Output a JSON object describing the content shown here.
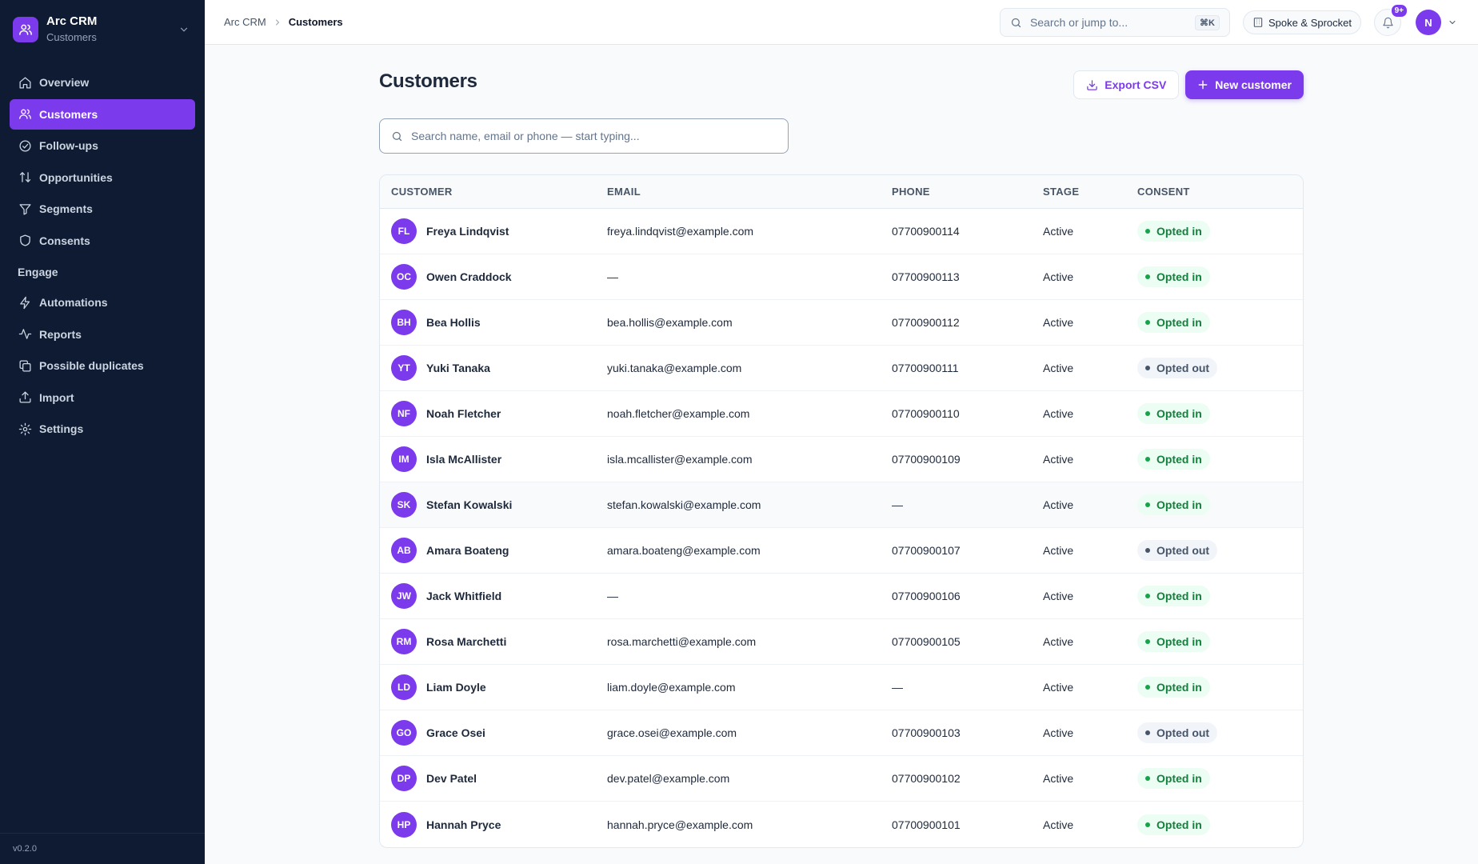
{
  "app": {
    "name": "Arc CRM",
    "section": "Customers",
    "version": "v0.2.0",
    "accent": "#7c3aed"
  },
  "sidebar": {
    "items": [
      {
        "label": "Overview",
        "icon": "home-icon"
      },
      {
        "label": "Customers",
        "icon": "users-icon",
        "active": true
      },
      {
        "label": "Follow-ups",
        "icon": "check-circle-icon"
      },
      {
        "label": "Opportunities",
        "icon": "arrows-updown-icon"
      },
      {
        "label": "Segments",
        "icon": "filter-icon"
      },
      {
        "label": "Consents",
        "icon": "shield-icon"
      }
    ],
    "group_label": "Engage",
    "group_items": [
      {
        "label": "Automations",
        "icon": "bolt-icon"
      },
      {
        "label": "Reports",
        "icon": "activity-icon"
      },
      {
        "label": "Possible duplicates",
        "icon": "copy-icon"
      },
      {
        "label": "Import",
        "icon": "upload-icon"
      },
      {
        "label": "Settings",
        "icon": "gear-icon"
      }
    ]
  },
  "topbar": {
    "breadcrumb_root": "Arc CRM",
    "breadcrumb_current": "Customers",
    "search_placeholder": "Search or jump to...",
    "search_shortcut": "⌘K",
    "org_name": "Spoke & Sprocket",
    "notifications_badge": "9+",
    "user_initial": "N"
  },
  "page": {
    "title": "Customers",
    "export_label": "Export CSV",
    "new_label": "New customer",
    "search_placeholder": "Search name, email or phone — start typing..."
  },
  "table": {
    "headers": {
      "customer": "CUSTOMER",
      "email": "EMAIL",
      "phone": "PHONE",
      "stage": "STAGE",
      "consent": "CONSENT"
    },
    "rows": [
      {
        "initials": "FL",
        "name": "Freya Lindqvist",
        "email": "freya.lindqvist@example.com",
        "phone": "07700900114",
        "stage": "Active",
        "consent": "Opted in"
      },
      {
        "initials": "OC",
        "name": "Owen Craddock",
        "email": "—",
        "phone": "07700900113",
        "stage": "Active",
        "consent": "Opted in"
      },
      {
        "initials": "BH",
        "name": "Bea Hollis",
        "email": "bea.hollis@example.com",
        "phone": "07700900112",
        "stage": "Active",
        "consent": "Opted in"
      },
      {
        "initials": "YT",
        "name": "Yuki Tanaka",
        "email": "yuki.tanaka@example.com",
        "phone": "07700900111",
        "stage": "Active",
        "consent": "Opted out"
      },
      {
        "initials": "NF",
        "name": "Noah Fletcher",
        "email": "noah.fletcher@example.com",
        "phone": "07700900110",
        "stage": "Active",
        "consent": "Opted in"
      },
      {
        "initials": "IM",
        "name": "Isla McAllister",
        "email": "isla.mcallister@example.com",
        "phone": "07700900109",
        "stage": "Active",
        "consent": "Opted in"
      },
      {
        "initials": "SK",
        "name": "Stefan Kowalski",
        "email": "stefan.kowalski@example.com",
        "phone": "—",
        "stage": "Active",
        "consent": "Opted in",
        "hover": true
      },
      {
        "initials": "AB",
        "name": "Amara Boateng",
        "email": "amara.boateng@example.com",
        "phone": "07700900107",
        "stage": "Active",
        "consent": "Opted out"
      },
      {
        "initials": "JW",
        "name": "Jack Whitfield",
        "email": "—",
        "phone": "07700900106",
        "stage": "Active",
        "consent": "Opted in"
      },
      {
        "initials": "RM",
        "name": "Rosa Marchetti",
        "email": "rosa.marchetti@example.com",
        "phone": "07700900105",
        "stage": "Active",
        "consent": "Opted in"
      },
      {
        "initials": "LD",
        "name": "Liam Doyle",
        "email": "liam.doyle@example.com",
        "phone": "—",
        "stage": "Active",
        "consent": "Opted in"
      },
      {
        "initials": "GO",
        "name": "Grace Osei",
        "email": "grace.osei@example.com",
        "phone": "07700900103",
        "stage": "Active",
        "consent": "Opted out"
      },
      {
        "initials": "DP",
        "name": "Dev Patel",
        "email": "dev.patel@example.com",
        "phone": "07700900102",
        "stage": "Active",
        "consent": "Opted in"
      },
      {
        "initials": "HP",
        "name": "Hannah Pryce",
        "email": "hannah.pryce@example.com",
        "phone": "07700900101",
        "stage": "Active",
        "consent": "Opted in"
      }
    ]
  }
}
